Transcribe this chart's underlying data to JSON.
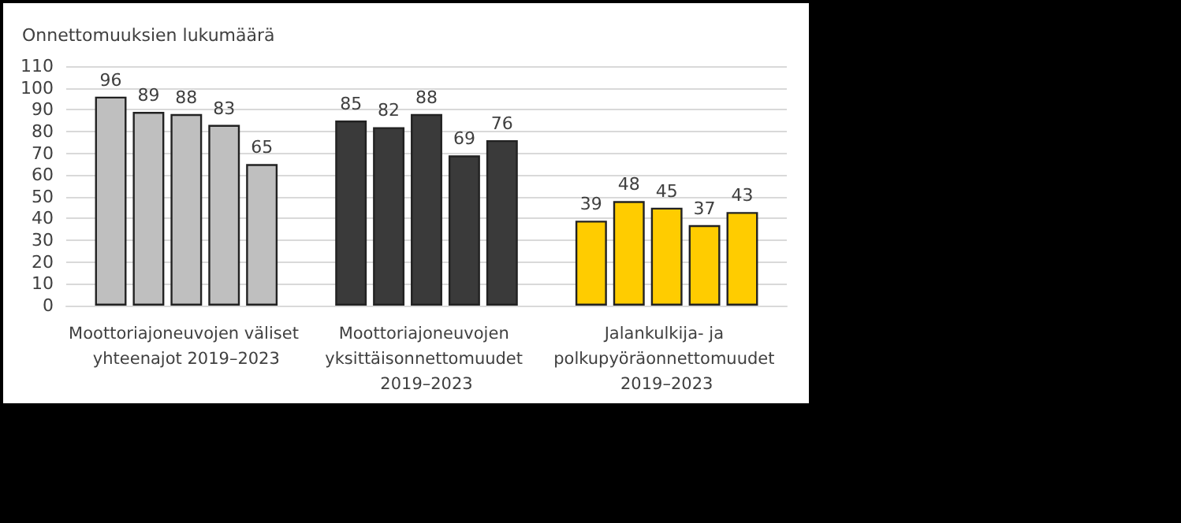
{
  "chart_data": {
    "type": "bar",
    "ylabel": "Onnettomuuksien lukumäärä",
    "categories": [
      "Moottoriajoneuvojen väliset yhteenajot 2019–2023",
      "Moottoriajoneuvojen yksittäisonnettomuudet 2019–2023",
      "Jalankulkija- ja polkupyöräonnettomuudet 2019–2023"
    ],
    "series": [
      {
        "colors": [
          "#bfbfbf",
          "#3a3a3a",
          "#ffcc00"
        ],
        "values": [
          96,
          85,
          39
        ]
      },
      {
        "colors": [
          "#bfbfbf",
          "#3a3a3a",
          "#ffcc00"
        ],
        "values": [
          89,
          82,
          48
        ]
      },
      {
        "colors": [
          "#bfbfbf",
          "#3a3a3a",
          "#ffcc00"
        ],
        "values": [
          88,
          88,
          45
        ]
      },
      {
        "colors": [
          "#bfbfbf",
          "#3a3a3a",
          "#ffcc00"
        ],
        "values": [
          83,
          69,
          37
        ]
      },
      {
        "colors": [
          "#bfbfbf",
          "#3a3a3a",
          "#ffcc00"
        ],
        "values": [
          65,
          76,
          43
        ]
      }
    ],
    "ylim": [
      0,
      110
    ],
    "yticks": [
      0,
      10,
      20,
      30,
      40,
      50,
      60,
      70,
      80,
      90,
      100,
      110
    ],
    "grid": "y",
    "data_labels": true
  }
}
